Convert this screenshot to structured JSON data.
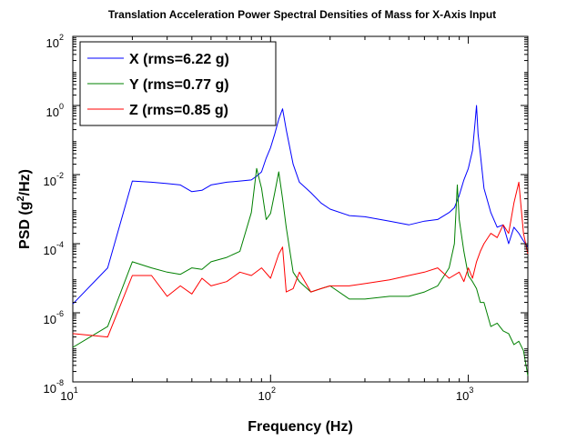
{
  "chart_data": {
    "type": "line",
    "title": "Translation Acceleration Power Spectral Densities of Mass for X-Axis Input",
    "xlabel": "Frequency (Hz)",
    "ylabel": "PSD (g²/Hz)",
    "ylabel_base": "PSD (g",
    "ylabel_sup": "2",
    "ylabel_rest": "/Hz)",
    "xscale": "log",
    "yscale": "log",
    "xlim": [
      10,
      2000
    ],
    "ylim": [
      1e-08,
      100
    ],
    "legend_position": "top-left",
    "grid": false,
    "x_ticks": [
      {
        "value": 10,
        "base": "10",
        "exp": "1"
      },
      {
        "value": 100,
        "base": "10",
        "exp": "2"
      },
      {
        "value": 1000,
        "base": "10",
        "exp": "3"
      }
    ],
    "y_ticks": [
      {
        "value": 1e-08,
        "base": "10",
        "exp": "-8"
      },
      {
        "value": 1e-06,
        "base": "10",
        "exp": "-6"
      },
      {
        "value": 0.0001,
        "base": "10",
        "exp": "-4"
      },
      {
        "value": 0.01,
        "base": "10",
        "exp": "-2"
      },
      {
        "value": 1,
        "base": "10",
        "exp": "0"
      },
      {
        "value": 100,
        "base": "10",
        "exp": "2"
      }
    ],
    "series": [
      {
        "name": "X (rms=6.22 g)",
        "color": "#0000ff",
        "x": [
          10,
          15,
          20,
          25,
          30,
          35,
          40,
          45,
          50,
          60,
          70,
          80,
          85,
          90,
          95,
          100,
          105,
          110,
          115,
          120,
          130,
          140,
          160,
          180,
          200,
          250,
          300,
          400,
          500,
          600,
          700,
          800,
          850,
          900,
          950,
          1000,
          1050,
          1080,
          1100,
          1120,
          1150,
          1200,
          1300,
          1400,
          1500,
          1600,
          1700,
          1800,
          1900,
          2000
        ],
        "y": [
          1.8e-06,
          2e-05,
          0.0065,
          0.006,
          0.0055,
          0.005,
          0.0032,
          0.0035,
          0.005,
          0.006,
          0.0065,
          0.007,
          0.009,
          0.012,
          0.03,
          0.06,
          0.15,
          0.4,
          0.8,
          0.2,
          0.02,
          0.006,
          0.003,
          0.0015,
          0.001,
          0.00065,
          0.0006,
          0.00045,
          0.00035,
          0.00045,
          0.0005,
          0.0008,
          0.0011,
          0.0025,
          0.007,
          0.015,
          0.05,
          0.3,
          1.0,
          0.15,
          0.04,
          0.004,
          0.0008,
          0.0003,
          0.00035,
          0.0001,
          0.0003,
          0.0002,
          0.00012,
          8e-05
        ]
      },
      {
        "name": "Y  (rms=0.77 g)",
        "color": "#008000",
        "x": [
          10,
          15,
          20,
          25,
          30,
          35,
          40,
          45,
          50,
          60,
          70,
          80,
          85,
          90,
          95,
          100,
          105,
          110,
          115,
          120,
          130,
          140,
          160,
          180,
          200,
          250,
          300,
          400,
          500,
          600,
          700,
          800,
          850,
          880,
          900,
          950,
          1000,
          1050,
          1100,
          1150,
          1200,
          1300,
          1400,
          1500,
          1600,
          1700,
          1800,
          1900,
          2000
        ],
        "y": [
          1e-07,
          4e-07,
          3e-05,
          2e-05,
          1.5e-05,
          1.3e-05,
          2e-05,
          1.8e-05,
          3e-05,
          4e-05,
          6e-05,
          0.0008,
          0.015,
          0.004,
          0.0005,
          0.00075,
          0.003,
          0.012,
          0.002,
          0.0003,
          1.5e-05,
          8e-06,
          4e-06,
          5e-06,
          6e-06,
          2.5e-06,
          2.5e-06,
          3e-06,
          3e-06,
          4e-06,
          6e-06,
          2e-05,
          0.0001,
          0.005,
          0.0005,
          6e-05,
          1.2e-05,
          8e-06,
          5e-06,
          2e-06,
          2e-06,
          4e-07,
          5e-07,
          3e-07,
          2.5e-07,
          1.2e-07,
          1.5e-07,
          8e-08,
          1.5e-08
        ]
      },
      {
        "name": "Z  (rms=0.85 g)",
        "color": "#ff0000",
        "x": [
          10,
          15,
          20,
          25,
          30,
          35,
          40,
          45,
          50,
          60,
          70,
          80,
          90,
          100,
          110,
          115,
          120,
          130,
          140,
          160,
          180,
          200,
          250,
          300,
          400,
          500,
          600,
          700,
          800,
          900,
          950,
          1000,
          1050,
          1100,
          1150,
          1200,
          1300,
          1400,
          1500,
          1600,
          1700,
          1800,
          1900,
          2000
        ],
        "y": [
          2.5e-07,
          2e-07,
          1.2e-05,
          1.2e-05,
          3e-06,
          6e-06,
          3.5e-06,
          1e-05,
          6e-06,
          8e-06,
          1.5e-05,
          1.2e-05,
          2e-05,
          1e-05,
          5e-05,
          8e-05,
          4e-06,
          5e-06,
          1.5e-05,
          4e-06,
          5e-06,
          6e-06,
          6e-06,
          7e-06,
          9e-06,
          1.2e-05,
          1.5e-05,
          2e-05,
          1e-05,
          1.5e-05,
          8e-06,
          2e-05,
          1e-05,
          3e-05,
          6e-05,
          0.0001,
          0.0002,
          0.00015,
          0.00035,
          0.0002,
          0.0015,
          0.006,
          0.0002,
          5e-05
        ]
      }
    ]
  }
}
